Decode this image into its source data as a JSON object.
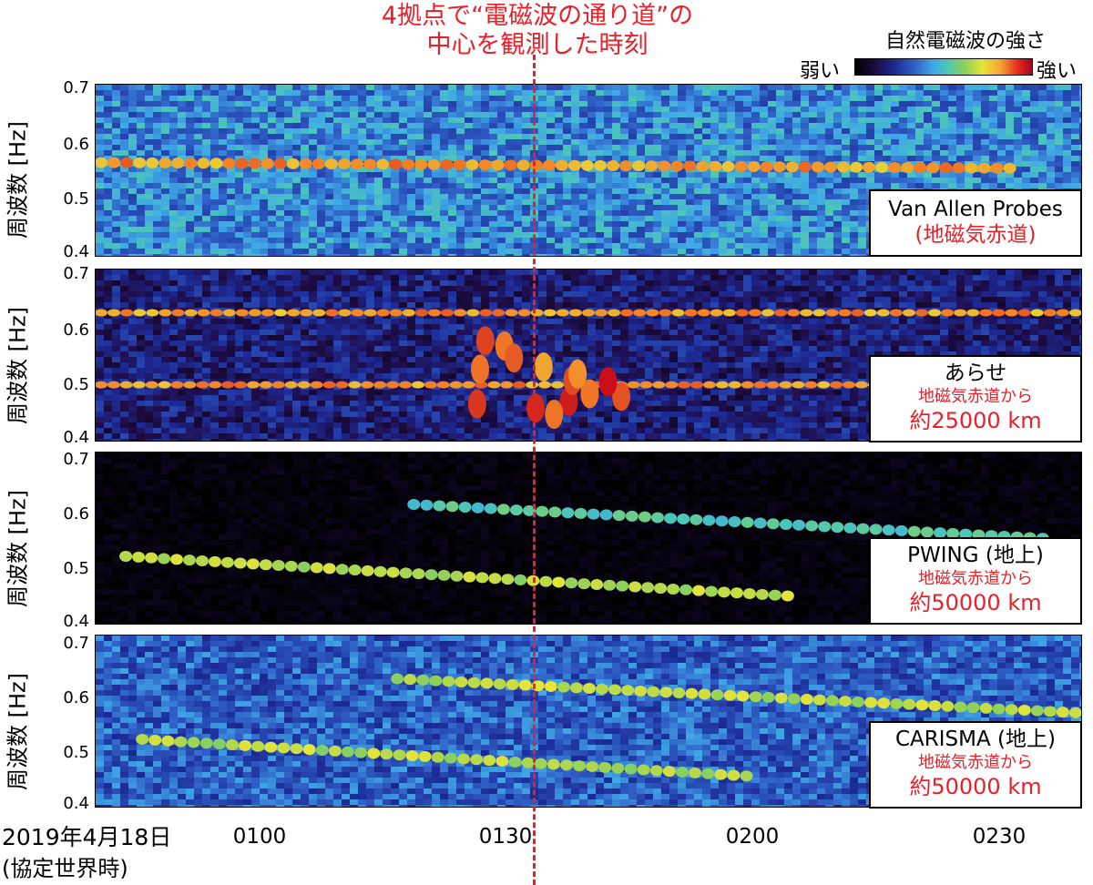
{
  "title_line1": "4拠点で“電磁波の通り道”の",
  "title_line2": "中心を観測した時刻",
  "colorbar": {
    "title": "自然電磁波の強さ",
    "low_label": "弱い",
    "high_label": "強い",
    "stops": [
      "#000000",
      "#1d2a8c",
      "#3fa7e6",
      "#8fd05a",
      "#e6e43a",
      "#e52a1f",
      "#a0051d"
    ]
  },
  "y_axis_label": "周波数 [Hz]",
  "y_ticks": [
    "0.7",
    "0.6",
    "0.5",
    "0.4"
  ],
  "x_ticks": [
    "0100",
    "0130",
    "0200",
    "0230"
  ],
  "date_line1": "2019年4月18日",
  "date_line2": "(協定世界時)",
  "marker_time": "0133",
  "panels": [
    {
      "name": "Van Allen Probes",
      "sub1": "(地磁気赤道)",
      "sub2": ""
    },
    {
      "name": "あらせ",
      "sub1": "地磁気赤道から",
      "sub2": "約25000 km"
    },
    {
      "name": "PWING (地上)",
      "sub1": "地磁気赤道から",
      "sub2": "約50000 km"
    },
    {
      "name": "CARISMA (地上)",
      "sub1": "地磁気赤道から",
      "sub2": "約50000 km"
    }
  ],
  "chart_data": {
    "type": "heatmap",
    "subtype": "spectrogram",
    "x_range_utc": [
      "0040",
      "0240"
    ],
    "y_range_hz": [
      0.4,
      0.7
    ],
    "y_label": "周波数 [Hz]",
    "marker_time_utc": "0133",
    "series": [
      {
        "name": "Van Allen Probes",
        "features": [
          {
            "type": "band",
            "x_start": "0040",
            "x_end": "0232",
            "y_start": 0.565,
            "y_end": 0.555,
            "intensity": "moderate, strongest 0155-0215"
          }
        ]
      },
      {
        "name": "あらせ",
        "features": [
          {
            "type": "band",
            "x_start": "0040",
            "x_end": "0234",
            "y_start": 0.5,
            "y_end": 0.5,
            "intensity": "constant line"
          },
          {
            "type": "band",
            "x_start": "0040",
            "x_end": "0240",
            "y_start": 0.625,
            "y_end": 0.625,
            "intensity": "constant line"
          },
          {
            "type": "bursts",
            "x_start": "0120",
            "x_end": "0145",
            "y_start": 0.44,
            "y_end": 0.58,
            "intensity": "strong"
          }
        ]
      },
      {
        "name": "PWING (地上)",
        "features": [
          {
            "type": "band",
            "x_start": "0043",
            "x_end": "0205",
            "y_start": 0.52,
            "y_end": 0.45,
            "intensity": "moderate"
          },
          {
            "type": "band",
            "x_start": "0118",
            "x_end": "0236",
            "y_start": 0.61,
            "y_end": 0.55,
            "intensity": "weak"
          }
        ]
      },
      {
        "name": "CARISMA (地上)",
        "features": [
          {
            "type": "band",
            "x_start": "0045",
            "x_end": "0200",
            "y_start": 0.52,
            "y_end": 0.455,
            "intensity": "moderate"
          },
          {
            "type": "band",
            "x_start": "0116",
            "x_end": "0240",
            "y_start": 0.625,
            "y_end": 0.565,
            "intensity": "moderate"
          }
        ]
      }
    ]
  }
}
